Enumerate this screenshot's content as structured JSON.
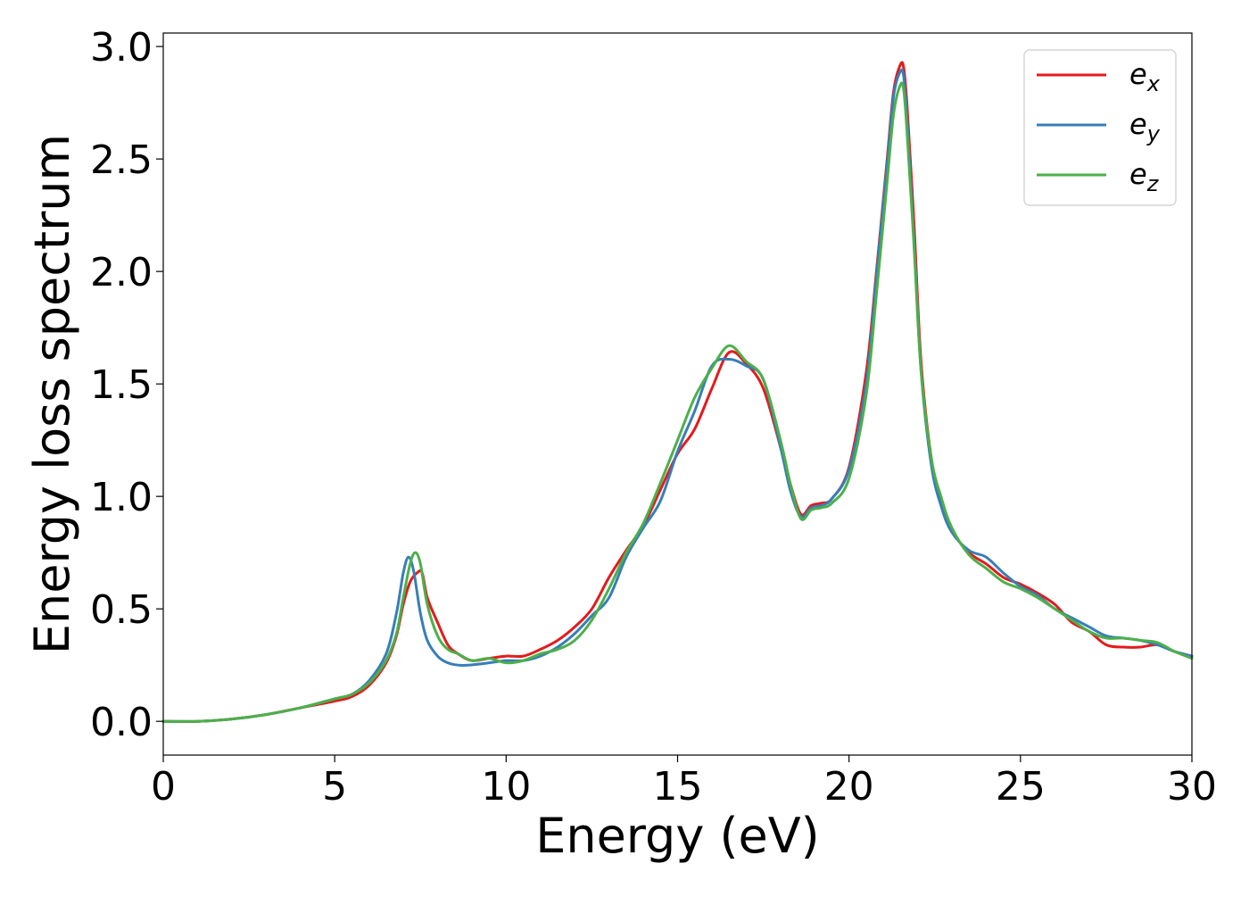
{
  "chart_data": {
    "type": "line",
    "title": "",
    "xlabel": "Energy (eV)",
    "ylabel": "Energy loss spectrum",
    "xlim": [
      0,
      30
    ],
    "ylim": [
      -0.15,
      3.06
    ],
    "xticks": [
      0,
      5,
      10,
      15,
      20,
      25,
      30
    ],
    "xtick_labels": [
      "0",
      "5",
      "10",
      "15",
      "20",
      "25",
      "30"
    ],
    "yticks": [
      0.0,
      0.5,
      1.0,
      1.5,
      2.0,
      2.5,
      3.0
    ],
    "ytick_labels": [
      "0.0",
      "0.5",
      "1.0",
      "1.5",
      "2.0",
      "2.5",
      "3.0"
    ],
    "grid": false,
    "legend_position": "top-right",
    "series": [
      {
        "name": "e_x",
        "legend_base": "e",
        "legend_sub": "x",
        "color": "#e41a1c",
        "x": [
          0,
          1,
          2,
          3,
          4,
          5,
          5.5,
          6,
          6.5,
          6.8,
          7.0,
          7.2,
          7.4,
          7.55,
          7.7,
          8.0,
          8.3,
          8.6,
          9.0,
          9.5,
          10,
          10.5,
          11,
          11.5,
          12,
          12.5,
          13,
          13.5,
          14,
          14.5,
          15,
          15.5,
          16,
          16.5,
          17,
          17.5,
          18,
          18.3,
          18.6,
          18.9,
          19.2,
          19.5,
          20,
          20.5,
          20.8,
          21.1,
          21.3,
          21.5,
          21.6,
          21.7,
          21.9,
          22.1,
          22.4,
          22.7,
          23,
          23.5,
          24,
          24.5,
          25,
          25.5,
          26,
          26.5,
          27,
          27.5,
          28,
          28.5,
          29,
          29.5,
          30
        ],
        "y": [
          0.0,
          0.0,
          0.01,
          0.03,
          0.06,
          0.09,
          0.11,
          0.16,
          0.26,
          0.38,
          0.52,
          0.62,
          0.66,
          0.66,
          0.55,
          0.44,
          0.34,
          0.3,
          0.27,
          0.28,
          0.29,
          0.29,
          0.32,
          0.36,
          0.42,
          0.5,
          0.64,
          0.76,
          0.87,
          1.03,
          1.19,
          1.3,
          1.48,
          1.64,
          1.59,
          1.48,
          1.22,
          1.05,
          0.92,
          0.96,
          0.97,
          0.99,
          1.13,
          1.55,
          2.0,
          2.48,
          2.8,
          2.92,
          2.9,
          2.72,
          2.2,
          1.6,
          1.17,
          0.97,
          0.85,
          0.75,
          0.7,
          0.64,
          0.61,
          0.57,
          0.52,
          0.44,
          0.4,
          0.34,
          0.33,
          0.33,
          0.34,
          0.31,
          0.29
        ]
      },
      {
        "name": "e_y",
        "legend_base": "e",
        "legend_sub": "y",
        "color": "#377eb8",
        "x": [
          0,
          1,
          2,
          3,
          4,
          5,
          5.5,
          6,
          6.5,
          6.8,
          7.0,
          7.15,
          7.3,
          7.5,
          7.7,
          8.0,
          8.3,
          8.6,
          8.9,
          9.5,
          10,
          10.5,
          11,
          11.5,
          12,
          12.5,
          13,
          13.5,
          14,
          14.5,
          15,
          15.5,
          16,
          16.5,
          17,
          17.5,
          18,
          18.3,
          18.6,
          18.9,
          19.2,
          19.5,
          20,
          20.5,
          20.8,
          21.1,
          21.3,
          21.5,
          21.6,
          21.7,
          21.9,
          22.1,
          22.4,
          22.7,
          23,
          23.5,
          24,
          24.5,
          25,
          25.5,
          26,
          26.5,
          27,
          27.5,
          28,
          28.5,
          29,
          29.5,
          30
        ],
        "y": [
          0.0,
          0.0,
          0.01,
          0.03,
          0.06,
          0.1,
          0.12,
          0.18,
          0.3,
          0.48,
          0.66,
          0.73,
          0.67,
          0.48,
          0.36,
          0.29,
          0.26,
          0.25,
          0.25,
          0.26,
          0.27,
          0.27,
          0.29,
          0.33,
          0.39,
          0.47,
          0.55,
          0.73,
          0.86,
          0.98,
          1.2,
          1.38,
          1.58,
          1.61,
          1.58,
          1.52,
          1.22,
          1.02,
          0.91,
          0.95,
          0.96,
          0.99,
          1.12,
          1.5,
          1.98,
          2.46,
          2.78,
          2.89,
          2.86,
          2.66,
          2.12,
          1.56,
          1.14,
          0.95,
          0.84,
          0.76,
          0.73,
          0.66,
          0.6,
          0.56,
          0.5,
          0.46,
          0.42,
          0.38,
          0.37,
          0.36,
          0.34,
          0.31,
          0.29
        ]
      },
      {
        "name": "e_z",
        "legend_base": "e",
        "legend_sub": "z",
        "color": "#4daf4a",
        "x": [
          0,
          1,
          2,
          3,
          4,
          5,
          5.5,
          6,
          6.5,
          6.8,
          7.0,
          7.2,
          7.35,
          7.5,
          7.7,
          8.0,
          8.3,
          8.6,
          9.0,
          9.5,
          10,
          10.5,
          11,
          11.5,
          12,
          12.5,
          13,
          13.5,
          14,
          14.5,
          15,
          15.5,
          16,
          16.5,
          17,
          17.5,
          18,
          18.3,
          18.6,
          18.9,
          19.2,
          19.5,
          20,
          20.5,
          20.8,
          21.1,
          21.3,
          21.5,
          21.6,
          21.7,
          21.9,
          22.1,
          22.4,
          22.7,
          23,
          23.5,
          24,
          24.5,
          25,
          25.5,
          26,
          26.5,
          27,
          27.5,
          28,
          28.5,
          29,
          29.5,
          30
        ],
        "y": [
          0.0,
          0.0,
          0.01,
          0.03,
          0.06,
          0.1,
          0.12,
          0.17,
          0.27,
          0.39,
          0.55,
          0.7,
          0.75,
          0.7,
          0.52,
          0.38,
          0.32,
          0.3,
          0.27,
          0.28,
          0.26,
          0.27,
          0.3,
          0.32,
          0.36,
          0.45,
          0.59,
          0.75,
          0.88,
          1.06,
          1.25,
          1.44,
          1.57,
          1.67,
          1.6,
          1.52,
          1.25,
          1.05,
          0.9,
          0.94,
          0.95,
          0.97,
          1.08,
          1.45,
          1.9,
          2.38,
          2.7,
          2.83,
          2.8,
          2.6,
          2.1,
          1.56,
          1.17,
          0.99,
          0.86,
          0.74,
          0.68,
          0.62,
          0.59,
          0.55,
          0.5,
          0.45,
          0.4,
          0.37,
          0.37,
          0.36,
          0.35,
          0.31,
          0.28
        ]
      }
    ]
  }
}
